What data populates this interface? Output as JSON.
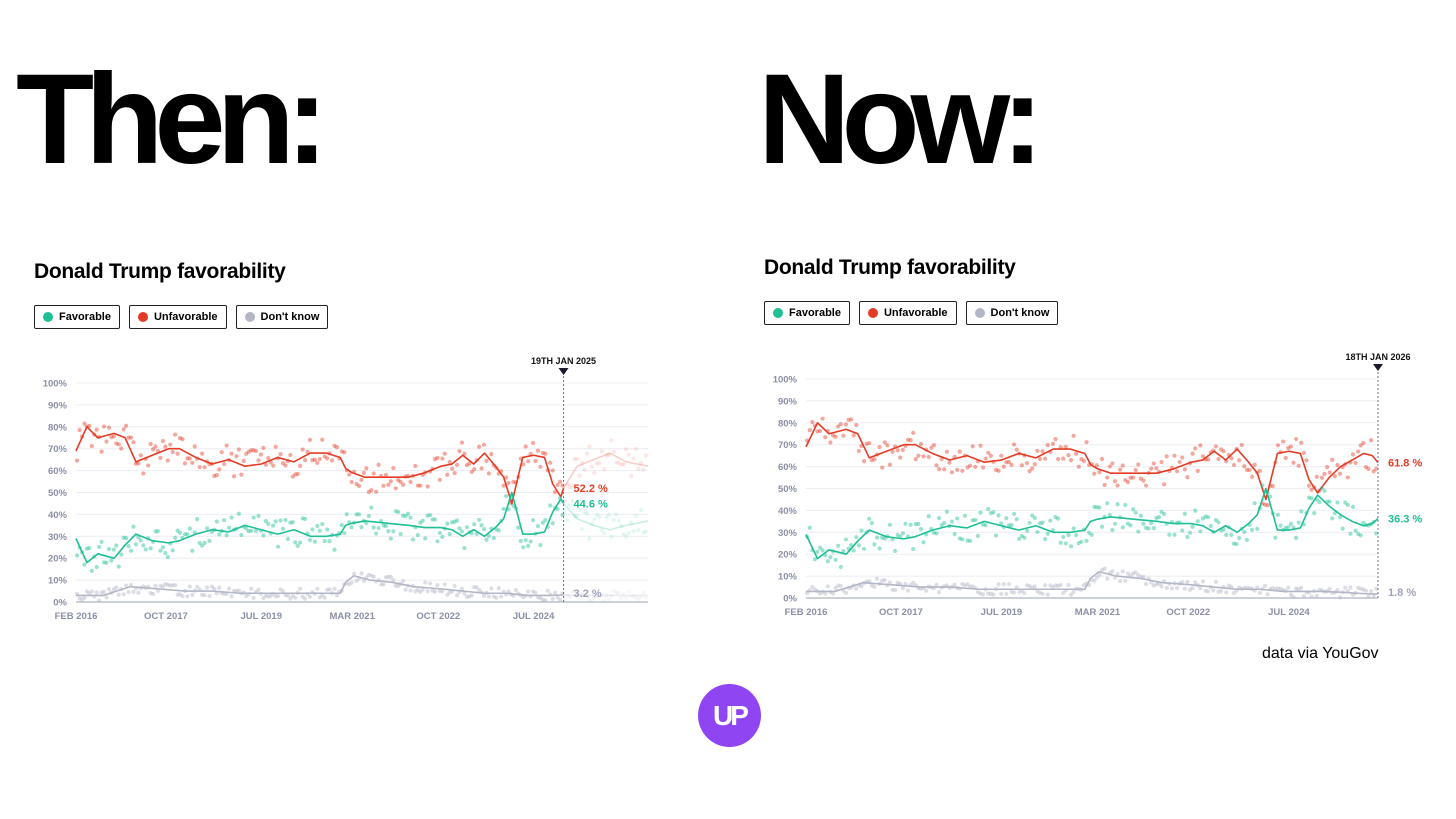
{
  "headings": {
    "then": "Then:",
    "now": "Now:"
  },
  "colors": {
    "favorable": "#1fbf96",
    "unfavorable": "#e53b25",
    "dont_know": "#b3b6c6",
    "axis_text": "#8a8fa6",
    "marker": "#1a1a2e",
    "logo": "#8f46f2"
  },
  "logo": {
    "icon": "up-logo-icon",
    "text": "UP"
  },
  "source_note": "data via YouGov",
  "chart_data": [
    {
      "type": "line",
      "title": "Donald Trump favorability",
      "legend": [
        "Favorable",
        "Unfavorable",
        "Don't know"
      ],
      "ylim": [
        0,
        100
      ],
      "y_ticks": [
        "100%",
        "90%",
        "80%",
        "70%",
        "60%",
        "50%",
        "40%",
        "30%",
        "20%",
        "10%",
        "0%"
      ],
      "x_range": [
        2016.1,
        2026.6
      ],
      "x_ticks": [
        {
          "label": "FEB 2016",
          "x": 2016.1
        },
        {
          "label": "OCT 2017",
          "x": 2017.75
        },
        {
          "label": "JUL 2019",
          "x": 2019.5
        },
        {
          "label": "MAR 2021",
          "x": 2021.17
        },
        {
          "label": "OCT 2022",
          "x": 2022.75
        },
        {
          "label": "JUL 2024",
          "x": 2024.5
        }
      ],
      "marker": {
        "label": "19TH JAN 2025",
        "x": 2025.05
      },
      "faded_after_marker": true,
      "end_labels": {
        "unfavorable": "52.2 %",
        "favorable": "44.6 %",
        "dont_know": "3.2 %"
      },
      "series": [
        {
          "name": "Unfavorable",
          "key": "unfavorable",
          "points": [
            [
              2016.1,
              69
            ],
            [
              2016.3,
              80
            ],
            [
              2016.5,
              75
            ],
            [
              2016.8,
              77
            ],
            [
              2017.0,
              75
            ],
            [
              2017.2,
              64
            ],
            [
              2017.5,
              67
            ],
            [
              2017.8,
              70
            ],
            [
              2018.0,
              70
            ],
            [
              2018.3,
              66
            ],
            [
              2018.6,
              63
            ],
            [
              2018.9,
              65
            ],
            [
              2019.2,
              62
            ],
            [
              2019.5,
              63
            ],
            [
              2019.8,
              66
            ],
            [
              2020.1,
              64
            ],
            [
              2020.4,
              68
            ],
            [
              2020.7,
              68
            ],
            [
              2020.95,
              66
            ],
            [
              2021.05,
              61
            ],
            [
              2021.17,
              59
            ],
            [
              2021.4,
              57
            ],
            [
              2021.8,
              57
            ],
            [
              2022.2,
              57
            ],
            [
              2022.5,
              59
            ],
            [
              2022.8,
              62
            ],
            [
              2023.0,
              63
            ],
            [
              2023.2,
              67
            ],
            [
              2023.4,
              63
            ],
            [
              2023.6,
              68
            ],
            [
              2023.8,
              62
            ],
            [
              2023.95,
              57
            ],
            [
              2024.1,
              45
            ],
            [
              2024.3,
              66
            ],
            [
              2024.5,
              67
            ],
            [
              2024.7,
              66
            ],
            [
              2024.85,
              54
            ],
            [
              2025.0,
              48
            ],
            [
              2025.05,
              52
            ],
            [
              2025.3,
              62
            ],
            [
              2025.6,
              65
            ],
            [
              2025.9,
              68
            ],
            [
              2026.2,
              64
            ],
            [
              2026.6,
              62
            ]
          ]
        },
        {
          "name": "Favorable",
          "key": "favorable",
          "points": [
            [
              2016.1,
              29
            ],
            [
              2016.3,
              18
            ],
            [
              2016.5,
              22
            ],
            [
              2016.8,
              20
            ],
            [
              2017.0,
              26
            ],
            [
              2017.2,
              31
            ],
            [
              2017.5,
              28
            ],
            [
              2017.8,
              27
            ],
            [
              2018.0,
              28
            ],
            [
              2018.3,
              31
            ],
            [
              2018.6,
              33
            ],
            [
              2018.9,
              32
            ],
            [
              2019.2,
              35
            ],
            [
              2019.5,
              33
            ],
            [
              2019.8,
              31
            ],
            [
              2020.1,
              33
            ],
            [
              2020.4,
              30
            ],
            [
              2020.7,
              30
            ],
            [
              2020.95,
              31
            ],
            [
              2021.05,
              35
            ],
            [
              2021.17,
              36
            ],
            [
              2021.4,
              37
            ],
            [
              2021.8,
              36
            ],
            [
              2022.2,
              35
            ],
            [
              2022.5,
              34
            ],
            [
              2022.8,
              34
            ],
            [
              2023.0,
              33
            ],
            [
              2023.2,
              30
            ],
            [
              2023.4,
              33
            ],
            [
              2023.6,
              30
            ],
            [
              2023.8,
              34
            ],
            [
              2023.95,
              38
            ],
            [
              2024.1,
              50
            ],
            [
              2024.3,
              31
            ],
            [
              2024.5,
              31
            ],
            [
              2024.7,
              32
            ],
            [
              2024.85,
              41
            ],
            [
              2025.0,
              47
            ],
            [
              2025.05,
              45
            ],
            [
              2025.3,
              38
            ],
            [
              2025.6,
              35
            ],
            [
              2025.9,
              33
            ],
            [
              2026.2,
              35
            ],
            [
              2026.6,
              37
            ]
          ]
        },
        {
          "name": "Don't know",
          "key": "dont_know",
          "points": [
            [
              2016.1,
              3
            ],
            [
              2016.6,
              3
            ],
            [
              2017.1,
              7
            ],
            [
              2017.6,
              6
            ],
            [
              2018.1,
              5
            ],
            [
              2018.6,
              5
            ],
            [
              2019.1,
              4
            ],
            [
              2019.6,
              4
            ],
            [
              2020.1,
              4
            ],
            [
              2020.6,
              4
            ],
            [
              2020.95,
              4
            ],
            [
              2021.05,
              9
            ],
            [
              2021.2,
              12
            ],
            [
              2021.5,
              10
            ],
            [
              2021.9,
              9
            ],
            [
              2022.3,
              7
            ],
            [
              2022.8,
              6
            ],
            [
              2023.2,
              5
            ],
            [
              2023.6,
              4
            ],
            [
              2024.0,
              4
            ],
            [
              2024.4,
              3
            ],
            [
              2024.8,
              3
            ],
            [
              2025.05,
              3.2
            ],
            [
              2025.6,
              3
            ],
            [
              2026.1,
              3
            ],
            [
              2026.6,
              3
            ]
          ]
        }
      ]
    },
    {
      "type": "line",
      "title": "Donald Trump favorability",
      "legend": [
        "Favorable",
        "Unfavorable",
        "Don't know"
      ],
      "ylim": [
        0,
        100
      ],
      "y_ticks": [
        "100%",
        "90%",
        "80%",
        "70%",
        "60%",
        "50%",
        "40%",
        "30%",
        "20%",
        "10%",
        "0%"
      ],
      "x_range": [
        2016.1,
        2026.05
      ],
      "x_ticks": [
        {
          "label": "FEB 2016",
          "x": 2016.1
        },
        {
          "label": "OCT 2017",
          "x": 2017.75
        },
        {
          "label": "JUL 2019",
          "x": 2019.5
        },
        {
          "label": "MAR 2021",
          "x": 2021.17
        },
        {
          "label": "OCT 2022",
          "x": 2022.75
        },
        {
          "label": "JUL 2024",
          "x": 2024.5
        }
      ],
      "marker": {
        "label": "18TH JAN 2026",
        "x": 2026.05
      },
      "faded_after_marker": false,
      "end_labels": {
        "unfavorable": "61.8 %",
        "favorable": "36.3 %",
        "dont_know": "1.8 %"
      },
      "series": [
        {
          "name": "Unfavorable",
          "key": "unfavorable",
          "points": [
            [
              2016.1,
              69
            ],
            [
              2016.3,
              80
            ],
            [
              2016.5,
              75
            ],
            [
              2016.8,
              77
            ],
            [
              2017.0,
              75
            ],
            [
              2017.2,
              64
            ],
            [
              2017.5,
              67
            ],
            [
              2017.8,
              70
            ],
            [
              2018.0,
              70
            ],
            [
              2018.3,
              66
            ],
            [
              2018.6,
              63
            ],
            [
              2018.9,
              65
            ],
            [
              2019.2,
              62
            ],
            [
              2019.5,
              63
            ],
            [
              2019.8,
              66
            ],
            [
              2020.1,
              64
            ],
            [
              2020.4,
              68
            ],
            [
              2020.7,
              68
            ],
            [
              2020.95,
              66
            ],
            [
              2021.05,
              61
            ],
            [
              2021.17,
              59
            ],
            [
              2021.4,
              57
            ],
            [
              2021.8,
              57
            ],
            [
              2022.2,
              57
            ],
            [
              2022.5,
              59
            ],
            [
              2022.8,
              62
            ],
            [
              2023.0,
              63
            ],
            [
              2023.2,
              67
            ],
            [
              2023.4,
              63
            ],
            [
              2023.6,
              68
            ],
            [
              2023.8,
              62
            ],
            [
              2023.95,
              57
            ],
            [
              2024.1,
              45
            ],
            [
              2024.3,
              66
            ],
            [
              2024.5,
              67
            ],
            [
              2024.7,
              66
            ],
            [
              2024.85,
              54
            ],
            [
              2025.0,
              48
            ],
            [
              2025.2,
              55
            ],
            [
              2025.4,
              60
            ],
            [
              2025.6,
              63
            ],
            [
              2025.8,
              66
            ],
            [
              2025.95,
              65
            ],
            [
              2026.05,
              61.8
            ]
          ]
        },
        {
          "name": "Favorable",
          "key": "favorable",
          "points": [
            [
              2016.1,
              29
            ],
            [
              2016.3,
              18
            ],
            [
              2016.5,
              22
            ],
            [
              2016.8,
              20
            ],
            [
              2017.0,
              26
            ],
            [
              2017.2,
              31
            ],
            [
              2017.5,
              28
            ],
            [
              2017.8,
              27
            ],
            [
              2018.0,
              28
            ],
            [
              2018.3,
              31
            ],
            [
              2018.6,
              33
            ],
            [
              2018.9,
              32
            ],
            [
              2019.2,
              35
            ],
            [
              2019.5,
              33
            ],
            [
              2019.8,
              31
            ],
            [
              2020.1,
              33
            ],
            [
              2020.4,
              30
            ],
            [
              2020.7,
              30
            ],
            [
              2020.95,
              31
            ],
            [
              2021.05,
              35
            ],
            [
              2021.17,
              36
            ],
            [
              2021.4,
              37
            ],
            [
              2021.8,
              36
            ],
            [
              2022.2,
              35
            ],
            [
              2022.5,
              34
            ],
            [
              2022.8,
              34
            ],
            [
              2023.0,
              33
            ],
            [
              2023.2,
              30
            ],
            [
              2023.4,
              33
            ],
            [
              2023.6,
              30
            ],
            [
              2023.8,
              34
            ],
            [
              2023.95,
              38
            ],
            [
              2024.1,
              50
            ],
            [
              2024.3,
              31
            ],
            [
              2024.5,
              31
            ],
            [
              2024.7,
              32
            ],
            [
              2024.85,
              41
            ],
            [
              2025.0,
              47
            ],
            [
              2025.2,
              42
            ],
            [
              2025.4,
              38
            ],
            [
              2025.6,
              35
            ],
            [
              2025.8,
              33
            ],
            [
              2025.95,
              34
            ],
            [
              2026.05,
              36.3
            ]
          ]
        },
        {
          "name": "Don't know",
          "key": "dont_know",
          "points": [
            [
              2016.1,
              3
            ],
            [
              2016.6,
              3
            ],
            [
              2017.1,
              7
            ],
            [
              2017.6,
              6
            ],
            [
              2018.1,
              5
            ],
            [
              2018.6,
              5
            ],
            [
              2019.1,
              4
            ],
            [
              2019.6,
              4
            ],
            [
              2020.1,
              4
            ],
            [
              2020.6,
              4
            ],
            [
              2020.95,
              4
            ],
            [
              2021.05,
              9
            ],
            [
              2021.2,
              12
            ],
            [
              2021.5,
              10
            ],
            [
              2021.9,
              9
            ],
            [
              2022.3,
              7
            ],
            [
              2022.8,
              6
            ],
            [
              2023.2,
              5
            ],
            [
              2023.6,
              4
            ],
            [
              2024.0,
              4
            ],
            [
              2024.4,
              3
            ],
            [
              2024.8,
              3
            ],
            [
              2025.1,
              3
            ],
            [
              2025.5,
              2.5
            ],
            [
              2025.8,
              2
            ],
            [
              2026.05,
              1.8
            ]
          ]
        }
      ]
    }
  ]
}
